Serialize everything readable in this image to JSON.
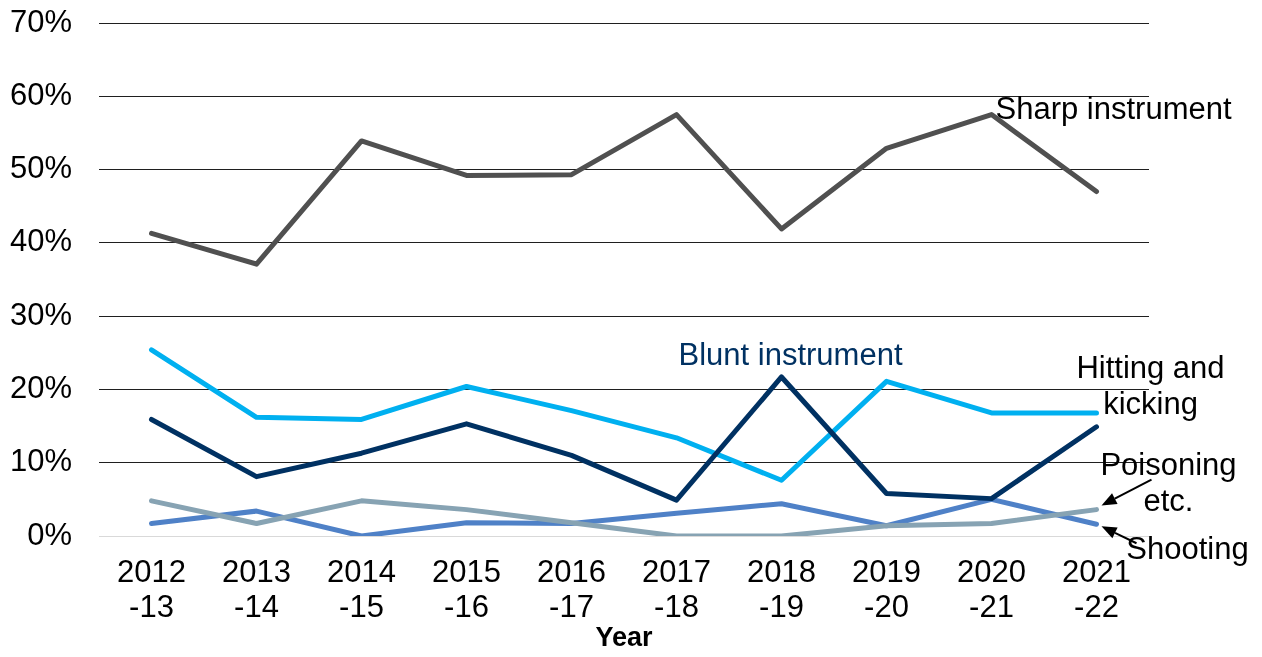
{
  "chart_data": {
    "type": "line",
    "xlabel": "Year",
    "categories": [
      "2012-13",
      "2013-14",
      "2014-15",
      "2015-16",
      "2016-17",
      "2017-18",
      "2018-19",
      "2019-20",
      "2020-21",
      "2021-22"
    ],
    "series": [
      {
        "name": "Sharp instrument",
        "color": "#505050",
        "values": [
          41.3,
          37.1,
          53.9,
          49.2,
          49.3,
          57.5,
          41.9,
          52.9,
          57.5,
          47.0
        ]
      },
      {
        "name": "Blunt instrument",
        "color": "#003162",
        "values": [
          15.9,
          8.1,
          11.3,
          15.3,
          11.0,
          4.9,
          21.7,
          5.8,
          5.1,
          14.9
        ]
      },
      {
        "name": "Hitting and kicking",
        "color": "#00b0f0",
        "values": [
          25.4,
          16.2,
          15.9,
          20.4,
          17.1,
          13.4,
          7.6,
          21.1,
          16.8,
          16.8
        ]
      },
      {
        "name": "Poisoning etc.",
        "color": "#87a3b3",
        "values": [
          4.8,
          1.7,
          4.8,
          3.6,
          1.8,
          0,
          0,
          1.4,
          1.7,
          3.6
        ]
      },
      {
        "name": "Shooting",
        "color": "#4f81c7",
        "values": [
          1.7,
          3.4,
          0,
          1.8,
          1.7,
          3.1,
          4.4,
          1.4,
          5.0,
          1.6
        ]
      }
    ],
    "ylim": [
      0,
      70
    ],
    "yticks": [
      {
        "value": 0,
        "label": "0%"
      },
      {
        "value": 10,
        "label": "10%"
      },
      {
        "value": 20,
        "label": "20%"
      },
      {
        "value": 30,
        "label": "30%"
      },
      {
        "value": 40,
        "label": "40%"
      },
      {
        "value": 50,
        "label": "50%"
      },
      {
        "value": 60,
        "label": "60%"
      },
      {
        "value": 70,
        "label": "70%"
      }
    ],
    "grid": "y",
    "marker": "none",
    "line_style": "solid"
  }
}
